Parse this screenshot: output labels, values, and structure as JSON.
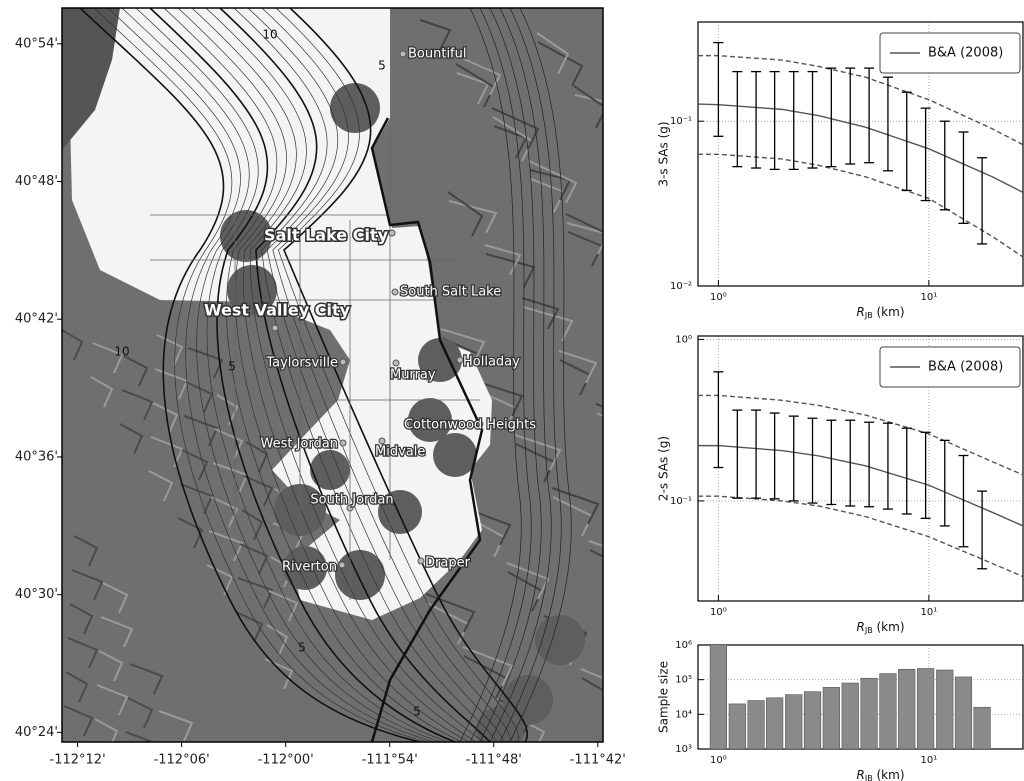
{
  "chart_data": [
    {
      "type": "map",
      "xlim": [
        -112.215,
        -111.695
      ],
      "ylim": [
        40.393,
        40.926
      ],
      "xticks": [
        {
          "value": -112.2,
          "label": "-112°12'"
        },
        {
          "value": -112.1,
          "label": "-112°06'"
        },
        {
          "value": -112.0,
          "label": "-112°00'"
        },
        {
          "value": -111.9,
          "label": "-111°54'"
        },
        {
          "value": -111.8,
          "label": "-111°48'"
        },
        {
          "value": -111.7,
          "label": "-111°42'"
        }
      ],
      "yticks": [
        {
          "value": 40.9,
          "label": "40°54'"
        },
        {
          "value": 40.8,
          "label": "40°48'"
        },
        {
          "value": 40.7,
          "label": "40°42'"
        },
        {
          "value": 40.6,
          "label": "40°36'"
        },
        {
          "value": 40.5,
          "label": "40°30'"
        },
        {
          "value": 40.4,
          "label": "40°24'"
        }
      ],
      "places": [
        "Bountiful",
        "Salt Lake City",
        "South Salt Lake",
        "West Valley City",
        "Taylorsville",
        "Murray",
        "Holladay",
        "Cottonwood Heights",
        "West Jordan",
        "Midvale",
        "South Jordan",
        "Riverton",
        "Draper"
      ],
      "contour_labels": [
        10,
        5,
        10,
        5,
        5,
        5
      ]
    },
    {
      "type": "errorbar",
      "ylabel": "3-s SAs (g)",
      "xlabel": [
        "R",
        "JB",
        " (km)"
      ],
      "log": true,
      "grid": true,
      "legend": "upper right",
      "xlim": [
        0.8,
        28
      ],
      "ylim": [
        0.01,
        0.4
      ],
      "xticks": [
        {
          "value": 1,
          "label": "10⁰"
        },
        {
          "value": 10,
          "label": "10¹"
        }
      ],
      "yticks": [
        {
          "value": 0.01,
          "label": "10⁻²"
        },
        {
          "value": 0.1,
          "label": "10⁻¹"
        }
      ],
      "x": [
        1.0,
        1.23,
        1.51,
        1.85,
        2.28,
        2.8,
        3.44,
        4.23,
        5.2,
        6.39,
        7.85,
        9.65,
        11.9,
        14.6,
        17.9
      ],
      "highs": [
        0.3,
        0.2,
        0.2,
        0.2,
        0.2,
        0.2,
        0.21,
        0.21,
        0.21,
        0.185,
        0.15,
        0.12,
        0.1,
        0.086,
        0.06
      ],
      "lows": [
        0.081,
        0.053,
        0.052,
        0.051,
        0.051,
        0.052,
        0.053,
        0.055,
        0.056,
        0.05,
        0.038,
        0.033,
        0.029,
        0.024,
        0.018
      ],
      "model": {
        "name": "B&A (2008)",
        "color": "#555555",
        "x": [
          0.8,
          1,
          2,
          3,
          5,
          10,
          20,
          28
        ],
        "values": [
          0.127,
          0.126,
          0.118,
          0.108,
          0.092,
          0.068,
          0.046,
          0.037
        ],
        "upper": [
          0.25,
          0.25,
          0.235,
          0.215,
          0.185,
          0.135,
          0.09,
          0.072
        ],
        "lower": [
          0.063,
          0.063,
          0.059,
          0.054,
          0.046,
          0.034,
          0.02,
          0.015
        ]
      }
    },
    {
      "type": "errorbar",
      "ylabel": "2-s SAs (g)",
      "xlabel": [
        "R",
        "JB",
        " (km)"
      ],
      "log": true,
      "grid": true,
      "legend": "upper right",
      "xlim": [
        0.8,
        28
      ],
      "ylim": [
        0.024,
        1.05
      ],
      "xticks": [
        {
          "value": 1,
          "label": "10⁰"
        },
        {
          "value": 10,
          "label": "10¹"
        }
      ],
      "yticks": [
        {
          "value": 0.1,
          "label": "10⁻¹"
        },
        {
          "value": 1,
          "label": "10⁰"
        }
      ],
      "x": [
        1.0,
        1.23,
        1.51,
        1.85,
        2.28,
        2.8,
        3.44,
        4.23,
        5.2,
        6.39,
        7.85,
        9.65,
        11.9,
        14.6,
        17.9
      ],
      "highs": [
        0.63,
        0.365,
        0.365,
        0.35,
        0.335,
        0.325,
        0.316,
        0.316,
        0.307,
        0.303,
        0.282,
        0.266,
        0.237,
        0.191,
        0.115
      ],
      "lows": [
        0.161,
        0.104,
        0.104,
        0.103,
        0.1,
        0.097,
        0.095,
        0.093,
        0.092,
        0.089,
        0.083,
        0.078,
        0.07,
        0.052,
        0.038
      ],
      "model": {
        "name": "B&A (2008)",
        "color": "#555555",
        "x": [
          0.8,
          1,
          2,
          3,
          5,
          10,
          20,
          28
        ],
        "values": [
          0.22,
          0.22,
          0.205,
          0.19,
          0.165,
          0.125,
          0.085,
          0.07
        ],
        "upper": [
          0.45,
          0.45,
          0.42,
          0.39,
          0.34,
          0.26,
          0.175,
          0.145
        ],
        "lower": [
          0.107,
          0.107,
          0.1,
          0.093,
          0.08,
          0.06,
          0.041,
          0.034
        ]
      }
    },
    {
      "type": "bar",
      "ylabel": "Sample size",
      "xlabel": [
        "R",
        "JB",
        " (km)"
      ],
      "log": true,
      "grid": true,
      "color": "#8a8a8a",
      "xlim": [
        0.8,
        28
      ],
      "ylim": [
        1000,
        1000000
      ],
      "xticks": [
        {
          "value": 1,
          "label": "10⁰"
        },
        {
          "value": 10,
          "label": "10¹"
        }
      ],
      "yticks": [
        {
          "value": 1000,
          "label": "10³"
        },
        {
          "value": 10000,
          "label": "10⁴"
        },
        {
          "value": 100000,
          "label": "10⁵"
        },
        {
          "value": 1000000,
          "label": "10⁶"
        }
      ],
      "x": [
        1.0,
        1.23,
        1.51,
        1.85,
        2.28,
        2.8,
        3.44,
        4.23,
        5.2,
        6.39,
        7.85,
        9.65,
        11.9,
        14.6,
        17.9
      ],
      "values": [
        1200000,
        20000,
        25000,
        30000,
        37000,
        45000,
        60000,
        80000,
        110000,
        150000,
        200000,
        210000,
        190000,
        120000,
        16000
      ]
    }
  ]
}
